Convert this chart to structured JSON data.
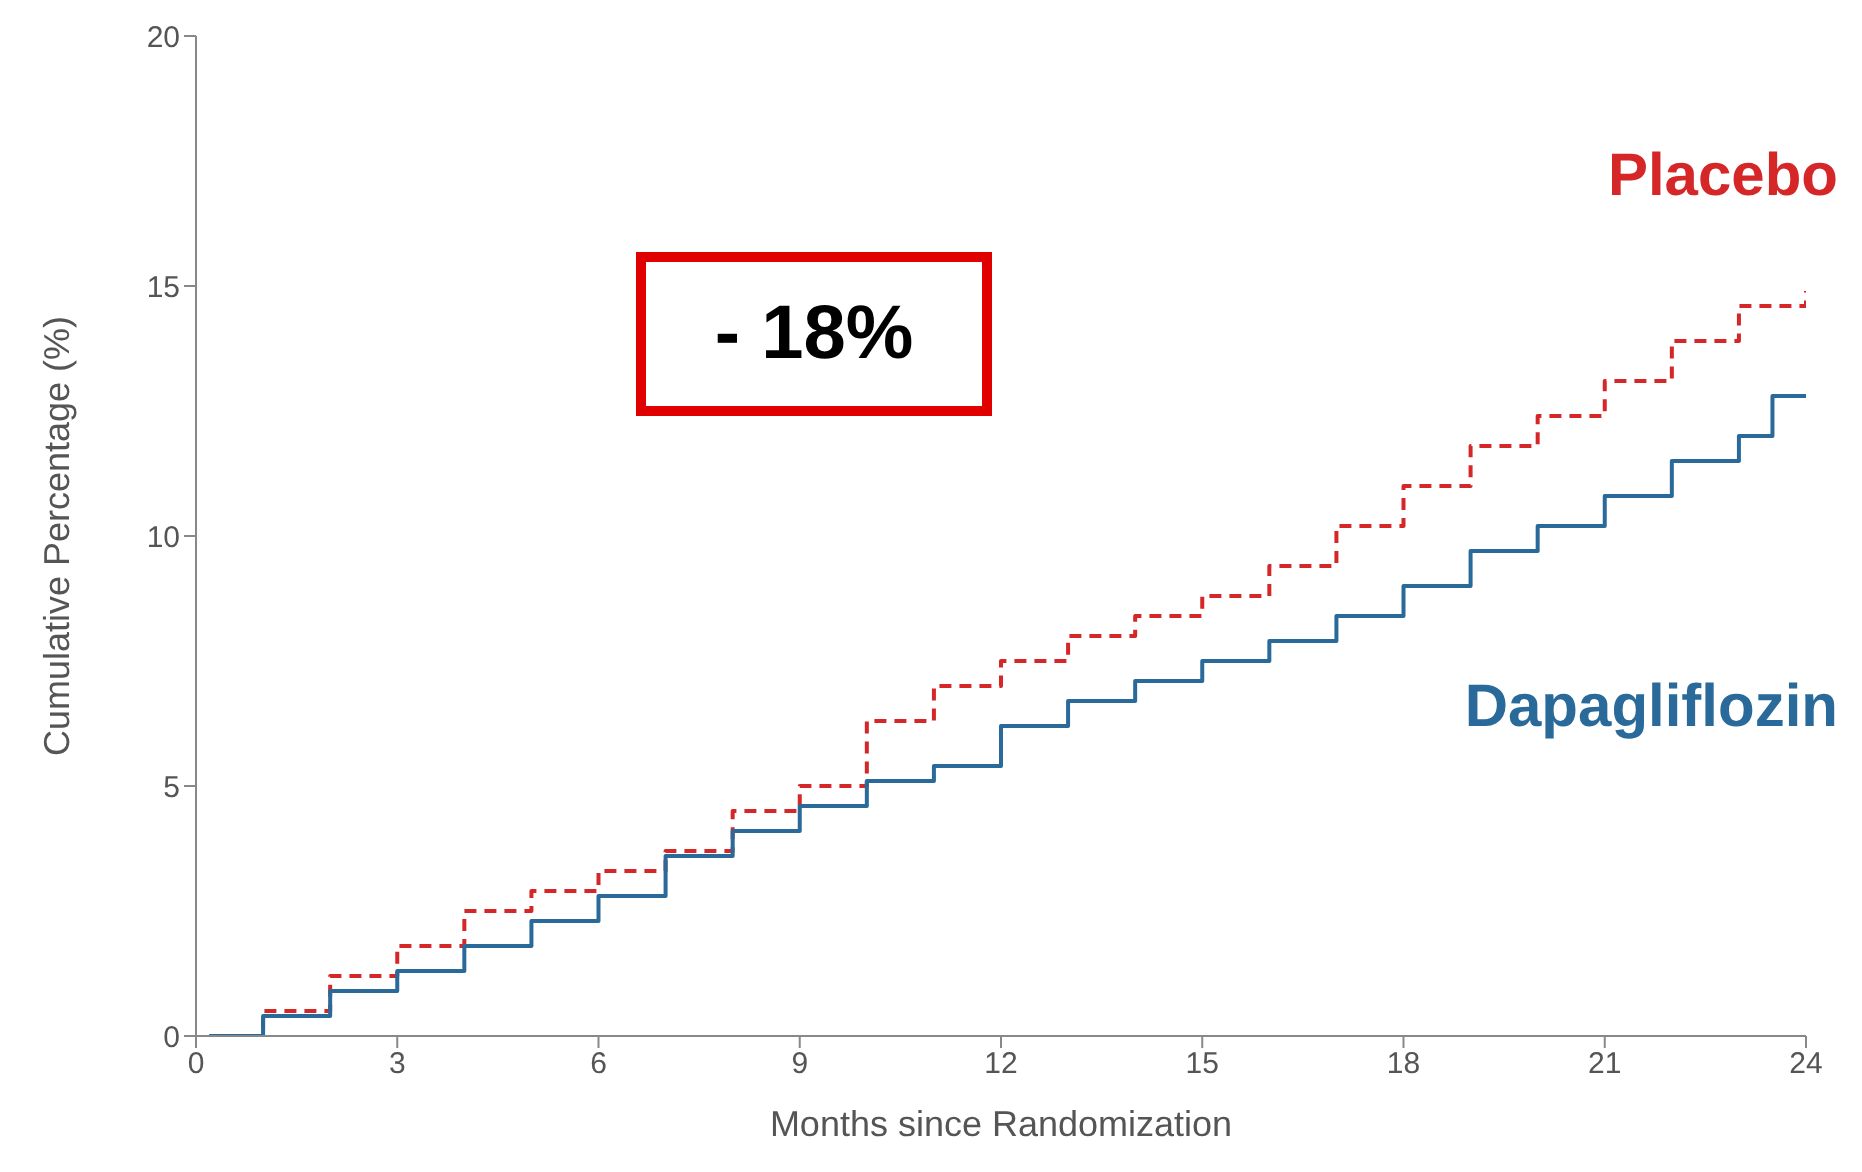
{
  "chart_data": {
    "type": "step",
    "xlabel": "Months since Randomization",
    "ylabel": "Cumulative Percentage (%)",
    "xlim": [
      0,
      24
    ],
    "xticks": [
      0,
      3,
      6,
      9,
      12,
      15,
      18,
      21,
      24
    ],
    "ylim": [
      0,
      20
    ],
    "yticks": [
      0,
      5,
      10,
      15,
      20
    ],
    "grid": false,
    "legend": false,
    "marker": "none",
    "annotations": [
      "- 18%"
    ],
    "x": [
      0.2,
      1,
      2,
      3,
      4,
      5,
      6,
      7,
      8,
      9,
      10,
      11,
      12,
      13,
      14,
      15,
      16,
      17,
      18,
      19,
      20,
      21,
      22,
      23,
      23.5,
      24
    ],
    "series": [
      {
        "name": "Placebo",
        "color": "#d62728",
        "line_style": "dashed",
        "values": [
          0,
          0.5,
          1.2,
          1.8,
          2.5,
          2.9,
          3.3,
          3.7,
          4.5,
          5.0,
          6.3,
          7.0,
          7.5,
          8.0,
          8.4,
          8.8,
          9.4,
          10.2,
          11.0,
          11.8,
          12.4,
          13.1,
          13.9,
          14.6,
          14.6,
          14.9
        ]
      },
      {
        "name": "Dapagliflozin",
        "color": "#2a6a9a",
        "line_style": "solid",
        "values": [
          0,
          0.4,
          0.9,
          1.3,
          1.8,
          2.3,
          2.8,
          3.6,
          4.1,
          4.6,
          5.1,
          5.4,
          6.2,
          6.7,
          7.1,
          7.5,
          7.9,
          8.4,
          9.0,
          9.7,
          10.2,
          10.8,
          11.5,
          12.0,
          12.8,
          12.8
        ]
      }
    ]
  }
}
